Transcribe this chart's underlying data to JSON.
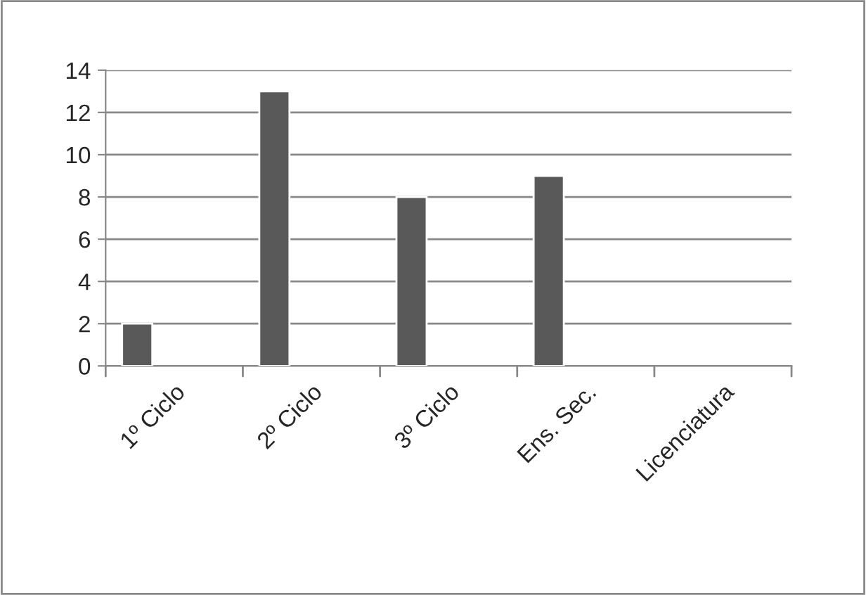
{
  "chart_data": {
    "type": "bar",
    "categories": [
      "1º Ciclo",
      "2º Ciclo",
      "3º Ciclo",
      "Ens. Sec.",
      "Licenciatura"
    ],
    "values": [
      2,
      13,
      8,
      9,
      null
    ],
    "color": "#595959",
    "ylim": [
      0,
      14
    ],
    "yticks": [
      0,
      2,
      4,
      6,
      8,
      10,
      12,
      14
    ],
    "grid": "y"
  }
}
